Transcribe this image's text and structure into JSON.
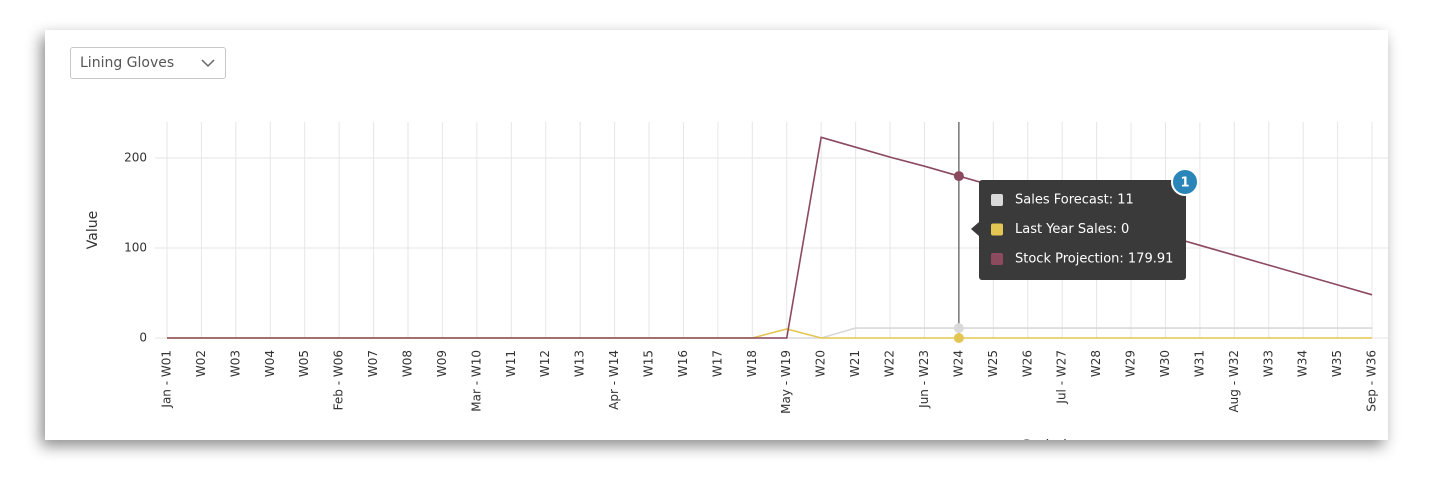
{
  "dropdown": {
    "selected": "Lining Gloves"
  },
  "chart_data": {
    "type": "line",
    "ylabel": "Value",
    "xlabel": "Period",
    "categories": [
      "Jan - W01",
      "W02",
      "W03",
      "W04",
      "W05",
      "Feb - W06",
      "W07",
      "W08",
      "W09",
      "Mar - W10",
      "W11",
      "W12",
      "W13",
      "Apr - W14",
      "W15",
      "W16",
      "W17",
      "W18",
      "May - W19",
      "W20",
      "W21",
      "W22",
      "Jun - W23",
      "W24",
      "W25",
      "W26",
      "Jul - W27",
      "W28",
      "W29",
      "W30",
      "W31",
      "Aug - W32",
      "W33",
      "W34",
      "W35",
      "Sep - W36"
    ],
    "series": [
      {
        "name": "Sales Forecast",
        "color": "#d9d9d9",
        "values": [
          0,
          0,
          0,
          0,
          0,
          0,
          0,
          0,
          0,
          0,
          0,
          0,
          0,
          0,
          0,
          0,
          0,
          0,
          0,
          0,
          11,
          11,
          11,
          11,
          11,
          11,
          11,
          11,
          11,
          11,
          11,
          11,
          11,
          11,
          11,
          11
        ]
      },
      {
        "name": "Last Year Sales",
        "color": "#e3c553",
        "values": [
          0,
          0,
          0,
          0,
          0,
          0,
          0,
          0,
          0,
          0,
          0,
          0,
          0,
          0,
          0,
          0,
          0,
          0,
          10,
          0,
          0,
          0,
          0,
          0,
          0,
          0,
          0,
          0,
          0,
          0,
          0,
          0,
          0,
          0,
          0,
          0
        ]
      },
      {
        "name": "Stock Projection",
        "color": "#8c4a5f",
        "values": [
          0,
          0,
          0,
          0,
          0,
          0,
          0,
          0,
          0,
          0,
          0,
          0,
          0,
          0,
          0,
          0,
          0,
          0,
          0,
          223,
          212,
          201,
          190.9,
          179.91,
          169,
          158,
          147,
          136,
          125,
          114,
          103,
          92,
          81,
          70,
          59,
          48
        ]
      }
    ],
    "ylim": [
      0,
      240
    ],
    "yticks": [
      0,
      100,
      200
    ],
    "grid": true,
    "tooltip": {
      "lines": [
        "Sales Forecast: 11",
        "Last Year Sales: 0",
        "Stock Projection: 179.91"
      ]
    },
    "annotation": "1"
  }
}
